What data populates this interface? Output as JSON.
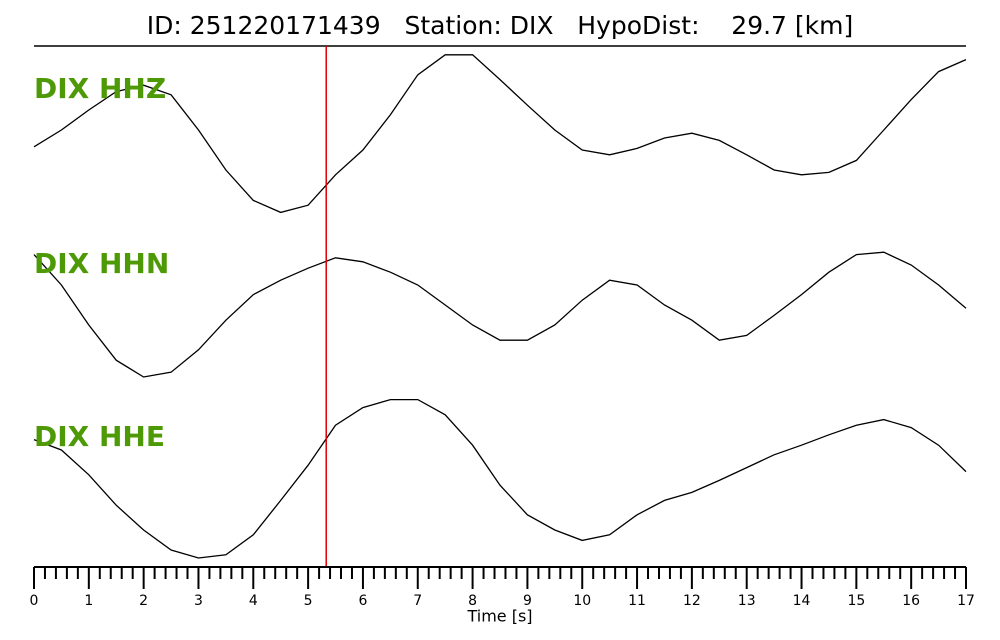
{
  "chart_data": {
    "type": "line",
    "title": "ID: 251220171439   Station: DIX   HypoDist:    29.7 [km]",
    "xlabel": "Time [s]",
    "x": [
      0,
      0.5,
      1,
      1.5,
      2,
      2.5,
      3,
      3.5,
      4,
      4.5,
      5,
      5.5,
      6,
      6.5,
      7,
      7.5,
      8,
      8.5,
      9,
      9.5,
      10,
      10.5,
      11,
      11.5,
      12,
      12.5,
      13,
      13.5,
      14,
      14.5,
      15,
      15.5,
      16,
      16.5,
      17
    ],
    "xlim": [
      0,
      17
    ],
    "xticks": [
      0,
      1,
      2,
      3,
      4,
      5,
      6,
      7,
      8,
      9,
      10,
      11,
      12,
      13,
      14,
      15,
      16,
      17
    ],
    "minor_ticks_per_major": 5,
    "ylim": [
      -1.1,
      1.1
    ],
    "label_color": "#4e9a06",
    "pick_time": 5.33,
    "pick_color": "#e00000",
    "series": [
      {
        "name": "DIX HHZ",
        "color": "#000000",
        "values": [
          -0.21,
          0,
          0.25,
          0.48,
          0.56,
          0.44,
          0,
          -0.5,
          -0.88,
          -1.03,
          -0.94,
          -0.56,
          -0.25,
          0.19,
          0.69,
          0.94,
          0.94,
          0.63,
          0.31,
          0,
          -0.25,
          -0.31,
          -0.23,
          -0.1,
          -0.04,
          -0.13,
          -0.31,
          -0.5,
          -0.56,
          -0.53,
          -0.38,
          0,
          0.38,
          0.73,
          0.88
        ]
      },
      {
        "name": "DIX HHN",
        "color": "#000000",
        "values": [
          0.63,
          0.25,
          -0.25,
          -0.69,
          -0.9,
          -0.84,
          -0.56,
          -0.19,
          0.13,
          0.31,
          0.46,
          0.59,
          0.54,
          0.41,
          0.25,
          0,
          -0.25,
          -0.44,
          -0.44,
          -0.25,
          0.06,
          0.31,
          0.25,
          0,
          -0.19,
          -0.44,
          -0.38,
          -0.13,
          0.13,
          0.41,
          0.63,
          0.66,
          0.5,
          0.25,
          -0.04
        ]
      },
      {
        "name": "DIX HHE",
        "color": "#000000",
        "values": [
          0.48,
          0.35,
          0.04,
          -0.34,
          -0.65,
          -0.9,
          -1,
          -0.96,
          -0.71,
          -0.28,
          0.16,
          0.66,
          0.88,
          0.98,
          0.98,
          0.79,
          0.41,
          -0.09,
          -0.46,
          -0.65,
          -0.78,
          -0.71,
          -0.46,
          -0.28,
          -0.18,
          -0.03,
          0.13,
          0.29,
          0.41,
          0.54,
          0.66,
          0.73,
          0.63,
          0.41,
          0.08
        ]
      }
    ]
  }
}
